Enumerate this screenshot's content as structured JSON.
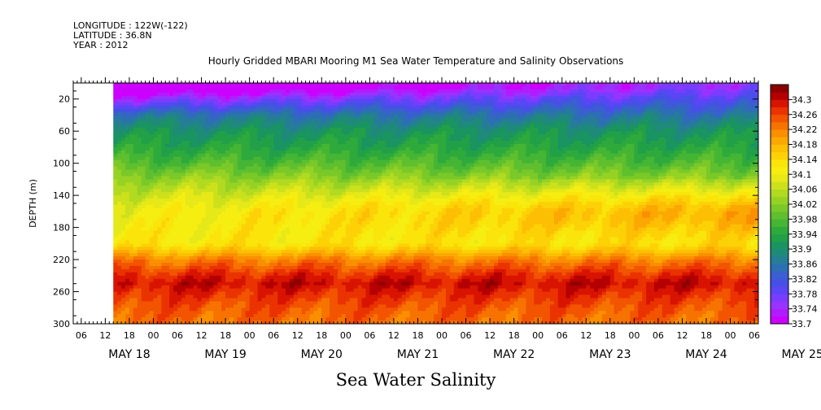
{
  "header": {
    "longitude": "LONGITUDE : 122W(-122)",
    "latitude": "LATITUDE : 36.8N",
    "year": "YEAR : 2012"
  },
  "bottom_label": "Sea Water Salinity",
  "chart_data": {
    "type": "heatmap",
    "title": "Hourly Gridded MBARI Mooring M1 Sea Water Temperature and Salinity Observations",
    "xlabel": "",
    "ylabel": "DEPTH (m)",
    "ylim": [
      300,
      0
    ],
    "y_ticks": [
      20,
      60,
      100,
      140,
      180,
      220,
      260,
      300
    ],
    "x_hour_ticks": [
      "06",
      "12",
      "18",
      "00",
      "06",
      "12",
      "18",
      "00",
      "06",
      "12",
      "18",
      "00",
      "06",
      "12",
      "18",
      "00",
      "06",
      "12",
      "18",
      "00",
      "06",
      "12",
      "18",
      "00",
      "06",
      "12",
      "18",
      "00",
      "06"
    ],
    "x_date_labels": [
      "MAY 18",
      "MAY 19",
      "MAY 20",
      "MAY 21",
      "MAY 22",
      "MAY 23",
      "MAY 24",
      "MAY 25"
    ],
    "x_range": [
      "MAY 18 04:00",
      "MAY 25 07:00"
    ],
    "data_start": "MAY 18 14:00",
    "colorbar": {
      "levels": [
        33.7,
        33.72,
        33.74,
        33.76,
        33.78,
        33.8,
        33.82,
        33.84,
        33.86,
        33.88,
        33.9,
        33.92,
        33.94,
        33.96,
        33.98,
        34.0,
        34.02,
        34.04,
        34.06,
        34.08,
        34.1,
        34.12,
        34.14,
        34.16,
        34.18,
        34.2,
        34.22,
        34.24,
        34.26,
        34.28,
        34.3,
        34.32
      ],
      "labels": [
        "34.3",
        "34.26",
        "34.22",
        "34.18",
        "34.14",
        "34.1",
        "34.06",
        "34.02",
        "33.98",
        "33.94",
        "33.9",
        "33.86",
        "33.82",
        "33.78",
        "33.74",
        "33.7"
      ],
      "colors": [
        "#cc00ff",
        "#b11cff",
        "#9933ff",
        "#7a3cff",
        "#5a46f5",
        "#4650e6",
        "#3a5fd0",
        "#2d6eb5",
        "#257d98",
        "#1f8a7a",
        "#1a9460",
        "#22a048",
        "#2eaa3c",
        "#45b534",
        "#5fbf2e",
        "#7ac928",
        "#96d224",
        "#b1da20",
        "#cce11c",
        "#e6e818",
        "#f5ee10",
        "#fae40a",
        "#fcd206",
        "#fdbf04",
        "#fca802",
        "#fa8f00",
        "#f77300",
        "#f25400",
        "#ea3300",
        "#d81400",
        "#b40000",
        "#8c0000"
      ]
    },
    "profile_depths": [
      5,
      20,
      40,
      60,
      80,
      100,
      120,
      140,
      160,
      180,
      200,
      220,
      240,
      250,
      260,
      280,
      300
    ],
    "profile_values": [
      33.7,
      33.77,
      33.86,
      33.91,
      33.94,
      33.98,
      34.03,
      34.07,
      34.1,
      34.11,
      34.12,
      34.22,
      34.28,
      34.3,
      34.28,
      34.25,
      34.23
    ]
  }
}
